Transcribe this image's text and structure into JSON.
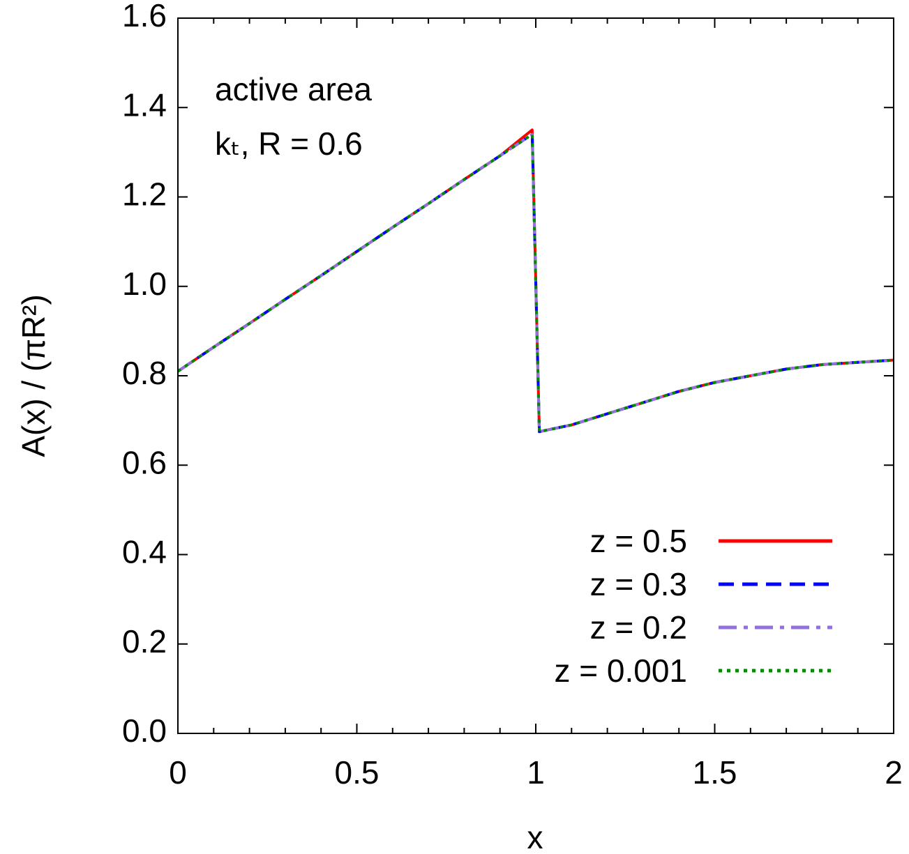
{
  "chart_data": {
    "type": "line",
    "x_label": "x",
    "y_label": "A(x) / (πR²)",
    "annotations": [
      "active area",
      "kₜ, R = 0.6"
    ],
    "x": [
      0,
      0.1,
      0.2,
      0.3,
      0.4,
      0.5,
      0.6,
      0.7,
      0.8,
      0.9,
      0.99,
      1.01,
      1.1,
      1.2,
      1.3,
      1.4,
      1.5,
      1.6,
      1.7,
      1.8,
      1.9,
      2.0
    ],
    "series": [
      {
        "name": "z = 0.5",
        "color": "#ff0000",
        "dash": "solid",
        "values": [
          0.81,
          0.864,
          0.917,
          0.971,
          1.024,
          1.078,
          1.132,
          1.185,
          1.239,
          1.292,
          1.35,
          0.675,
          0.69,
          0.715,
          0.74,
          0.765,
          0.785,
          0.8,
          0.815,
          0.825,
          0.83,
          0.835
        ]
      },
      {
        "name": "z = 0.3",
        "color": "#0000ff",
        "dash": "dashed",
        "values": [
          0.81,
          0.864,
          0.917,
          0.971,
          1.024,
          1.078,
          1.132,
          1.185,
          1.239,
          1.292,
          1.34,
          0.675,
          0.69,
          0.715,
          0.74,
          0.765,
          0.785,
          0.8,
          0.815,
          0.825,
          0.83,
          0.835
        ]
      },
      {
        "name": "z = 0.2",
        "color": "#9370db",
        "dash": "dashdot",
        "values": [
          0.81,
          0.864,
          0.917,
          0.971,
          1.024,
          1.078,
          1.132,
          1.185,
          1.239,
          1.292,
          1.34,
          0.675,
          0.69,
          0.715,
          0.74,
          0.765,
          0.785,
          0.8,
          0.815,
          0.825,
          0.83,
          0.835
        ]
      },
      {
        "name": "z = 0.001",
        "color": "#008b00",
        "dash": "dotted",
        "values": [
          0.81,
          0.864,
          0.917,
          0.971,
          1.024,
          1.078,
          1.132,
          1.185,
          1.239,
          1.292,
          1.34,
          0.675,
          0.69,
          0.715,
          0.74,
          0.765,
          0.785,
          0.8,
          0.815,
          0.825,
          0.83,
          0.835
        ]
      }
    ],
    "xlim": [
      0,
      2
    ],
    "ylim": [
      0,
      1.6
    ],
    "xticks": [
      0,
      0.5,
      1,
      1.5,
      2
    ],
    "yticks": [
      {
        "value": 0,
        "label": "0.0"
      },
      0.2,
      0.4,
      0.6,
      0.8,
      {
        "value": 1,
        "label": "1.0"
      },
      1.2,
      1.4,
      1.6
    ],
    "legend": "lower right",
    "grid": false
  }
}
